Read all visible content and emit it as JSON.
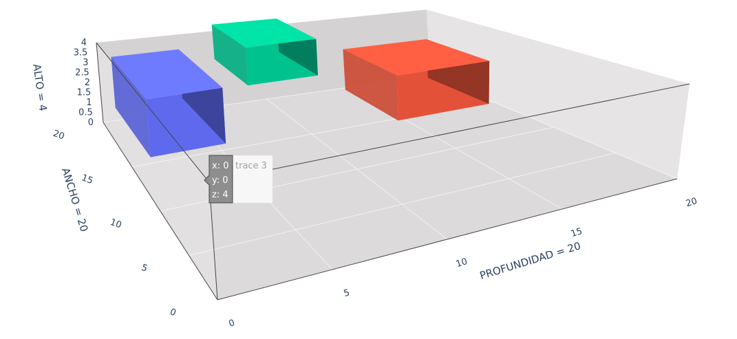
{
  "chart_data": {
    "type": "3d-mesh",
    "axes": {
      "x": {
        "title": "PROFUNDIDAD = 20",
        "range": [
          0,
          20
        ],
        "ticks": [
          0,
          5,
          10,
          15,
          20
        ]
      },
      "y": {
        "title": "ANCHO = 20",
        "range": [
          0,
          20
        ],
        "ticks": [
          0,
          5,
          10,
          15,
          20
        ]
      },
      "z": {
        "title": "ALTO = 4",
        "range": [
          0,
          4
        ],
        "ticks": [
          0,
          0.5,
          1,
          1.5,
          2,
          2.5,
          3,
          3.5,
          4
        ]
      }
    },
    "boxes": [
      {
        "color": "#636efa",
        "x": [
          0.5,
          4.5
        ],
        "y": [
          13,
          19
        ],
        "z": [
          1.1,
          3.6
        ]
      },
      {
        "color": "#00cc96",
        "x": [
          7.5,
          11.5
        ],
        "y": [
          17,
          21
        ],
        "z": [
          2.1,
          4.0
        ]
      },
      {
        "color": "#ef553b",
        "x": [
          14.5,
          19.5
        ],
        "y": [
          14.5,
          19.5
        ],
        "z": [
          0.1,
          2.4
        ]
      }
    ],
    "hover": {
      "x_label": "x: 0",
      "y_label": "y: 0",
      "z_label": "z: 4",
      "trace_name": "trace 3"
    }
  }
}
